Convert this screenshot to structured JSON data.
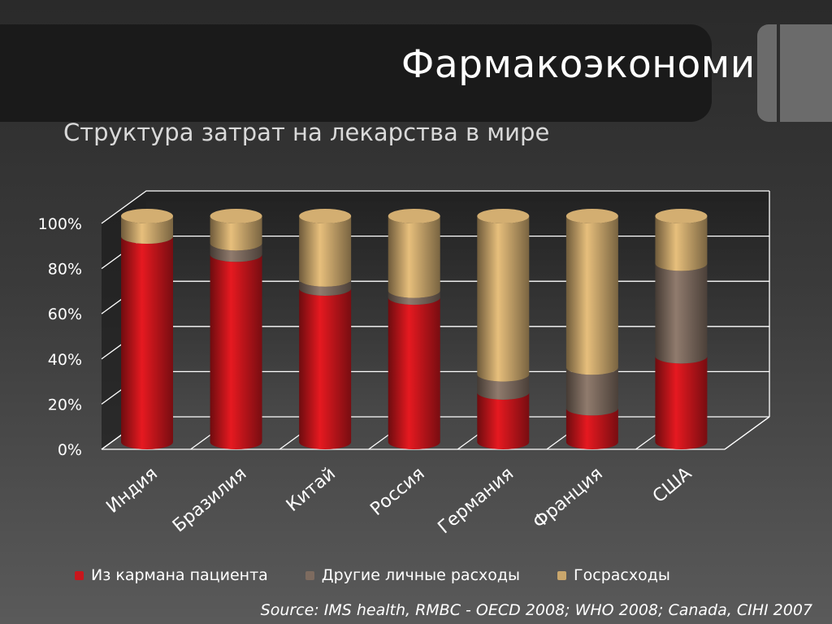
{
  "slide": {
    "title": "Фармакоэкономика",
    "subtitle": "Структура затрат на лекарства в мире",
    "source": "Source: IMS health, RMBC -  OECD 2008; WHO 2008; Canada, CIHI 2007"
  },
  "chart_data": {
    "type": "bar",
    "stacked": true,
    "percent": true,
    "categories": [
      "Индия",
      "Бразилия",
      "Китай",
      "Россия",
      "Германия",
      "Франция",
      "США"
    ],
    "series": [
      {
        "name": "Из кармана пациента",
        "color": "#c8161c",
        "values": [
          91,
          83,
          68,
          64,
          22,
          15,
          38
        ]
      },
      {
        "name": "Другие личные расходы",
        "color": "#7d6b5f",
        "values": [
          0,
          5,
          4,
          3,
          8,
          18,
          41
        ]
      },
      {
        "name": "Госрасходы",
        "color": "#c9a66c",
        "values": [
          9,
          12,
          28,
          33,
          70,
          67,
          21
        ]
      }
    ],
    "yticks": [
      "0%",
      "20%",
      "40%",
      "60%",
      "80%",
      "100%"
    ],
    "ylim": [
      0,
      100
    ],
    "grid": true,
    "legend_position": "bottom"
  }
}
